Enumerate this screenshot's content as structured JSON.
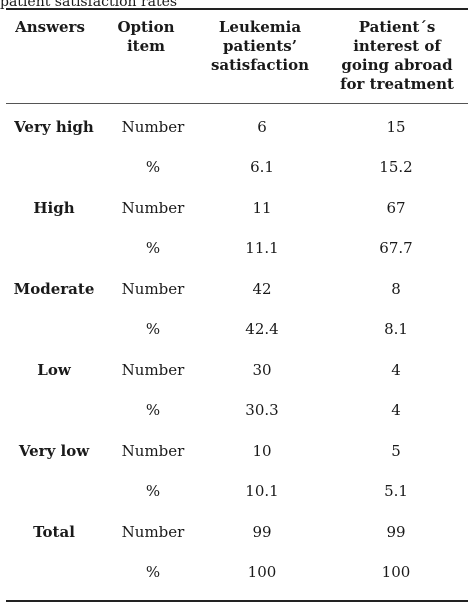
{
  "caption": "patient satisfaction rates",
  "headers": {
    "answers": "Answers",
    "option": "Option item",
    "leukemia": [
      "Leukemia",
      "patients’",
      "satisfaction"
    ],
    "abroad": [
      "Patient΄s",
      "interest of",
      "going abroad",
      "for treatment"
    ]
  },
  "rows": [
    {
      "answer": "Very high",
      "option": "Number",
      "leukemia": "6",
      "abroad": "15"
    },
    {
      "answer": "",
      "option": "%",
      "leukemia": "6.1",
      "abroad": "15.2"
    },
    {
      "answer": "High",
      "option": "Number",
      "leukemia": "11",
      "abroad": "67"
    },
    {
      "answer": "",
      "option": "%",
      "leukemia": "11.1",
      "abroad": "67.7"
    },
    {
      "answer": "Moderate",
      "option": "Number",
      "leukemia": "42",
      "abroad": "8"
    },
    {
      "answer": "",
      "option": "%",
      "leukemia": "42.4",
      "abroad": "8.1"
    },
    {
      "answer": "Low",
      "option": "Number",
      "leukemia": "30",
      "abroad": "4"
    },
    {
      "answer": "",
      "option": "%",
      "leukemia": "30.3",
      "abroad": "4"
    },
    {
      "answer": "Very low",
      "option": "Number",
      "leukemia": "10",
      "abroad": "5"
    },
    {
      "answer": "",
      "option": "%",
      "leukemia": "10.1",
      "abroad": "5.1"
    },
    {
      "answer": "Total",
      "option": "Number",
      "leukemia": "99",
      "abroad": "99"
    },
    {
      "answer": "",
      "option": "%",
      "leukemia": "100",
      "abroad": "100"
    }
  ]
}
